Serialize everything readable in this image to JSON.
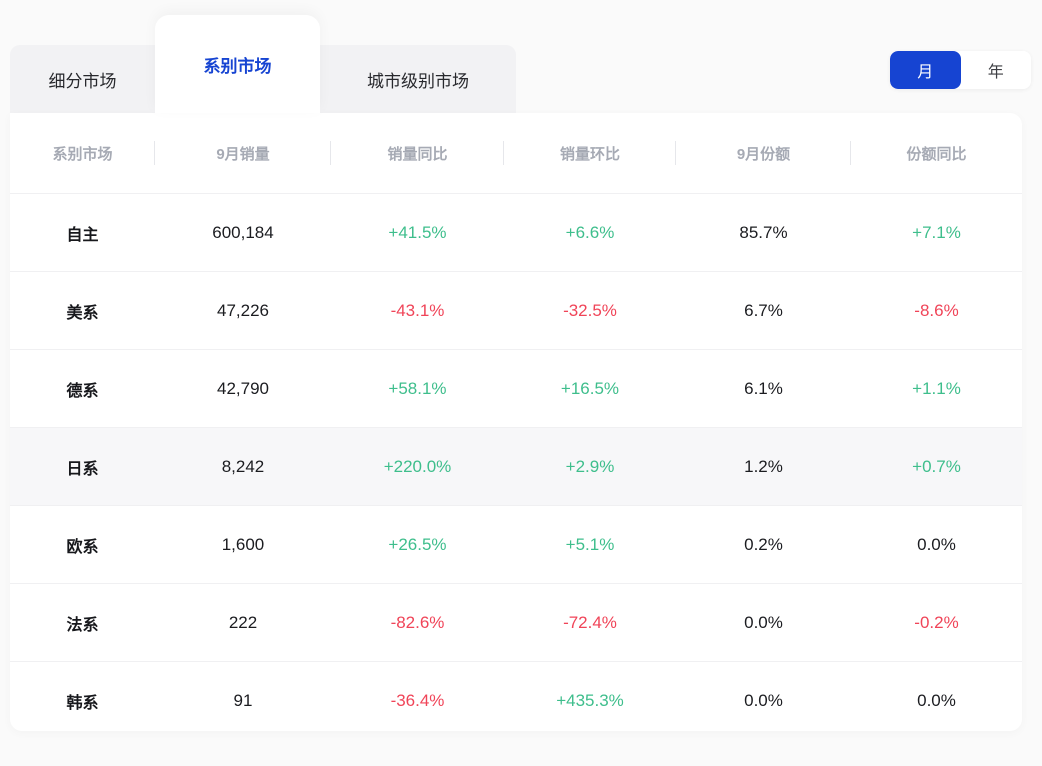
{
  "tabs": [
    {
      "label": "细分市场",
      "active": false
    },
    {
      "label": "系别市场",
      "active": true
    },
    {
      "label": "城市级别市场",
      "active": false
    }
  ],
  "period_toggle": {
    "options": [
      "月",
      "年"
    ],
    "selected": "月"
  },
  "table": {
    "headers": [
      "系别市场",
      "9月销量",
      "销量同比",
      "销量环比",
      "9月份额",
      "份额同比"
    ],
    "rows": [
      {
        "name": "自主",
        "values": [
          "600,184",
          "+41.5%",
          "+6.6%",
          "85.7%",
          "+7.1%"
        ],
        "highlighted": false
      },
      {
        "name": "美系",
        "values": [
          "47,226",
          "-43.1%",
          "-32.5%",
          "6.7%",
          "-8.6%"
        ],
        "highlighted": false
      },
      {
        "name": "德系",
        "values": [
          "42,790",
          "+58.1%",
          "+16.5%",
          "6.1%",
          "+1.1%"
        ],
        "highlighted": false
      },
      {
        "name": "日系",
        "values": [
          "8,242",
          "+220.0%",
          "+2.9%",
          "1.2%",
          "+0.7%"
        ],
        "highlighted": true
      },
      {
        "name": "欧系",
        "values": [
          "1,600",
          "+26.5%",
          "+5.1%",
          "0.2%",
          "0.0%"
        ],
        "highlighted": false
      },
      {
        "name": "法系",
        "values": [
          "222",
          "-82.6%",
          "-72.4%",
          "0.0%",
          "-0.2%"
        ],
        "highlighted": false
      },
      {
        "name": "韩系",
        "values": [
          "91",
          "-36.4%",
          "+435.3%",
          "0.0%",
          "0.0%"
        ],
        "highlighted": false
      }
    ]
  },
  "colors": {
    "accent_blue": "#1644d2",
    "positive_green": "#3ebe8c",
    "negative_red": "#f04458",
    "neutral_text": "#1b1c20",
    "header_text": "#a6aab4"
  }
}
